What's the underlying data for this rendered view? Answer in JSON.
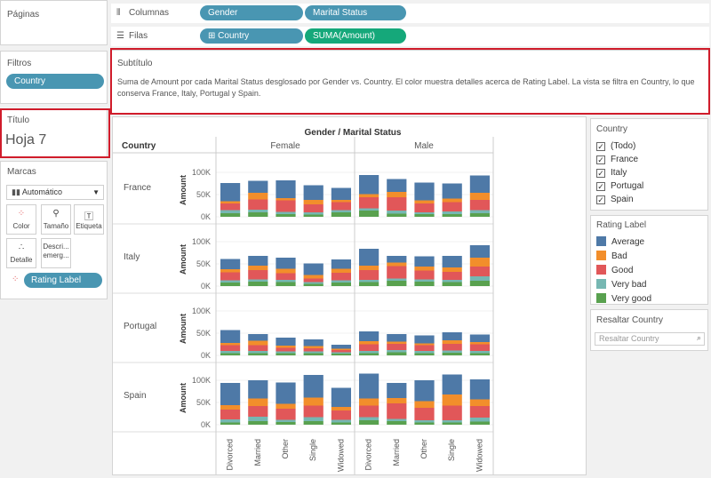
{
  "pages": {
    "title": "Páginas"
  },
  "shelves": {
    "columns": {
      "label": "Columnas",
      "pills": [
        "Gender",
        "Marital Status"
      ]
    },
    "rows": {
      "label": "Filas",
      "pills": [
        "⊞ Country",
        "SUMA(Amount)"
      ]
    }
  },
  "filters": {
    "title": "Filtros",
    "pill": "Country"
  },
  "title_card": {
    "label": "Título",
    "value": "Hoja 7"
  },
  "marks": {
    "title": "Marcas",
    "type": "Automático",
    "buttons": {
      "color": "Color",
      "size": "Tamaño",
      "label": "Etiqueta",
      "detail": "Detalle",
      "tooltip": "Descri... emerg..."
    },
    "pill": "Rating Label"
  },
  "subtitle": {
    "label": "Subtítulo",
    "text": "Suma de Amount por cada Marital Status desglosado por Gender vs. Country.  El color muestra detalles acerca de Rating Label. La vista se filtra en Country, lo que conserva France, Italy, Portugal y Spain."
  },
  "country_filter": {
    "title": "Country",
    "items": [
      "(Todo)",
      "France",
      "Italy",
      "Portugal",
      "Spain"
    ]
  },
  "rating_legend": {
    "title": "Rating Label",
    "items": [
      {
        "label": "Average",
        "color": "#4e79a7"
      },
      {
        "label": "Bad",
        "color": "#f28e2b"
      },
      {
        "label": "Good",
        "color": "#e15759"
      },
      {
        "label": "Very bad",
        "color": "#76b7b2"
      },
      {
        "label": "Very good",
        "color": "#59a14f"
      }
    ]
  },
  "highlight": {
    "title": "Resaltar Country",
    "placeholder": "Resaltar Country"
  },
  "chart_data": {
    "type": "bar",
    "title": "Gender / Marital Status",
    "row_header": "Country",
    "ylabel": "Amount",
    "ylim": [
      0,
      120000
    ],
    "yticks": [
      "0K",
      "50K",
      "100K"
    ],
    "genders": [
      "Female",
      "Male"
    ],
    "categories": [
      "Divorced",
      "Married",
      "Other",
      "Single",
      "Widowed"
    ],
    "countries": [
      "France",
      "Italy",
      "Portugal",
      "Spain"
    ],
    "stack_order": [
      "Very good",
      "Very bad",
      "Good",
      "Bad",
      "Average"
    ],
    "values": {
      "France": {
        "Female": [
          [
            8000,
            7000,
            15000,
            5000,
            41000
          ],
          [
            10000,
            6000,
            23000,
            15000,
            27000
          ],
          [
            6000,
            5000,
            26000,
            5000,
            40000
          ],
          [
            5000,
            5000,
            18000,
            10000,
            33000
          ],
          [
            10000,
            5000,
            18000,
            5000,
            27000
          ]
        ],
        "Male": [
          [
            14000,
            5000,
            25000,
            7000,
            43000
          ],
          [
            7000,
            7000,
            30000,
            12000,
            29000
          ],
          [
            6000,
            4000,
            20000,
            7000,
            40000
          ],
          [
            6000,
            6000,
            21000,
            8000,
            34000
          ],
          [
            8000,
            7000,
            23000,
            16000,
            39000
          ]
        ]
      },
      "Italy": {
        "Female": [
          [
            8000,
            5000,
            18000,
            7000,
            23000
          ],
          [
            10000,
            5000,
            21000,
            10000,
            22000
          ],
          [
            9000,
            5000,
            15000,
            10000,
            25000
          ],
          [
            5000,
            4000,
            8000,
            8000,
            26000
          ],
          [
            8000,
            5000,
            17000,
            9000,
            21000
          ]
        ],
        "Male": [
          [
            9000,
            5000,
            22000,
            10000,
            38000
          ],
          [
            12000,
            5000,
            28000,
            8000,
            15000
          ],
          [
            10000,
            5000,
            20000,
            9000,
            23000
          ],
          [
            9000,
            5000,
            18000,
            10000,
            26000
          ],
          [
            12000,
            10000,
            22000,
            20000,
            28000
          ]
        ]
      },
      "Portugal": {
        "Female": [
          [
            5000,
            5000,
            13000,
            5000,
            29000
          ],
          [
            5000,
            5000,
            13000,
            10000,
            15000
          ],
          [
            5000,
            4000,
            8000,
            5000,
            18000
          ],
          [
            5000,
            4000,
            7000,
            5000,
            15000
          ],
          [
            4000,
            3000,
            5000,
            3000,
            9000
          ]
        ],
        "Male": [
          [
            5000,
            5000,
            15000,
            7000,
            22000
          ],
          [
            7000,
            5000,
            14000,
            5000,
            17000
          ],
          [
            5000,
            5000,
            13000,
            4000,
            18000
          ],
          [
            6000,
            5000,
            15000,
            8000,
            18000
          ],
          [
            5000,
            5000,
            15000,
            5000,
            17000
          ]
        ]
      },
      "Spain": {
        "Female": [
          [
            5000,
            7000,
            22000,
            10000,
            50000
          ],
          [
            8000,
            10000,
            24000,
            17000,
            41000
          ],
          [
            6000,
            5000,
            25000,
            11000,
            48000
          ],
          [
            8000,
            9000,
            26000,
            18000,
            51000
          ],
          [
            5000,
            6000,
            21000,
            8000,
            43000
          ]
        ],
        "Male": [
          [
            10000,
            7000,
            26000,
            16000,
            56000
          ],
          [
            8000,
            5000,
            35000,
            12000,
            34000
          ],
          [
            5000,
            5000,
            28000,
            15000,
            47000
          ],
          [
            5000,
            5000,
            33000,
            25000,
            45000
          ],
          [
            7000,
            9000,
            26000,
            15000,
            45000
          ]
        ]
      }
    }
  }
}
